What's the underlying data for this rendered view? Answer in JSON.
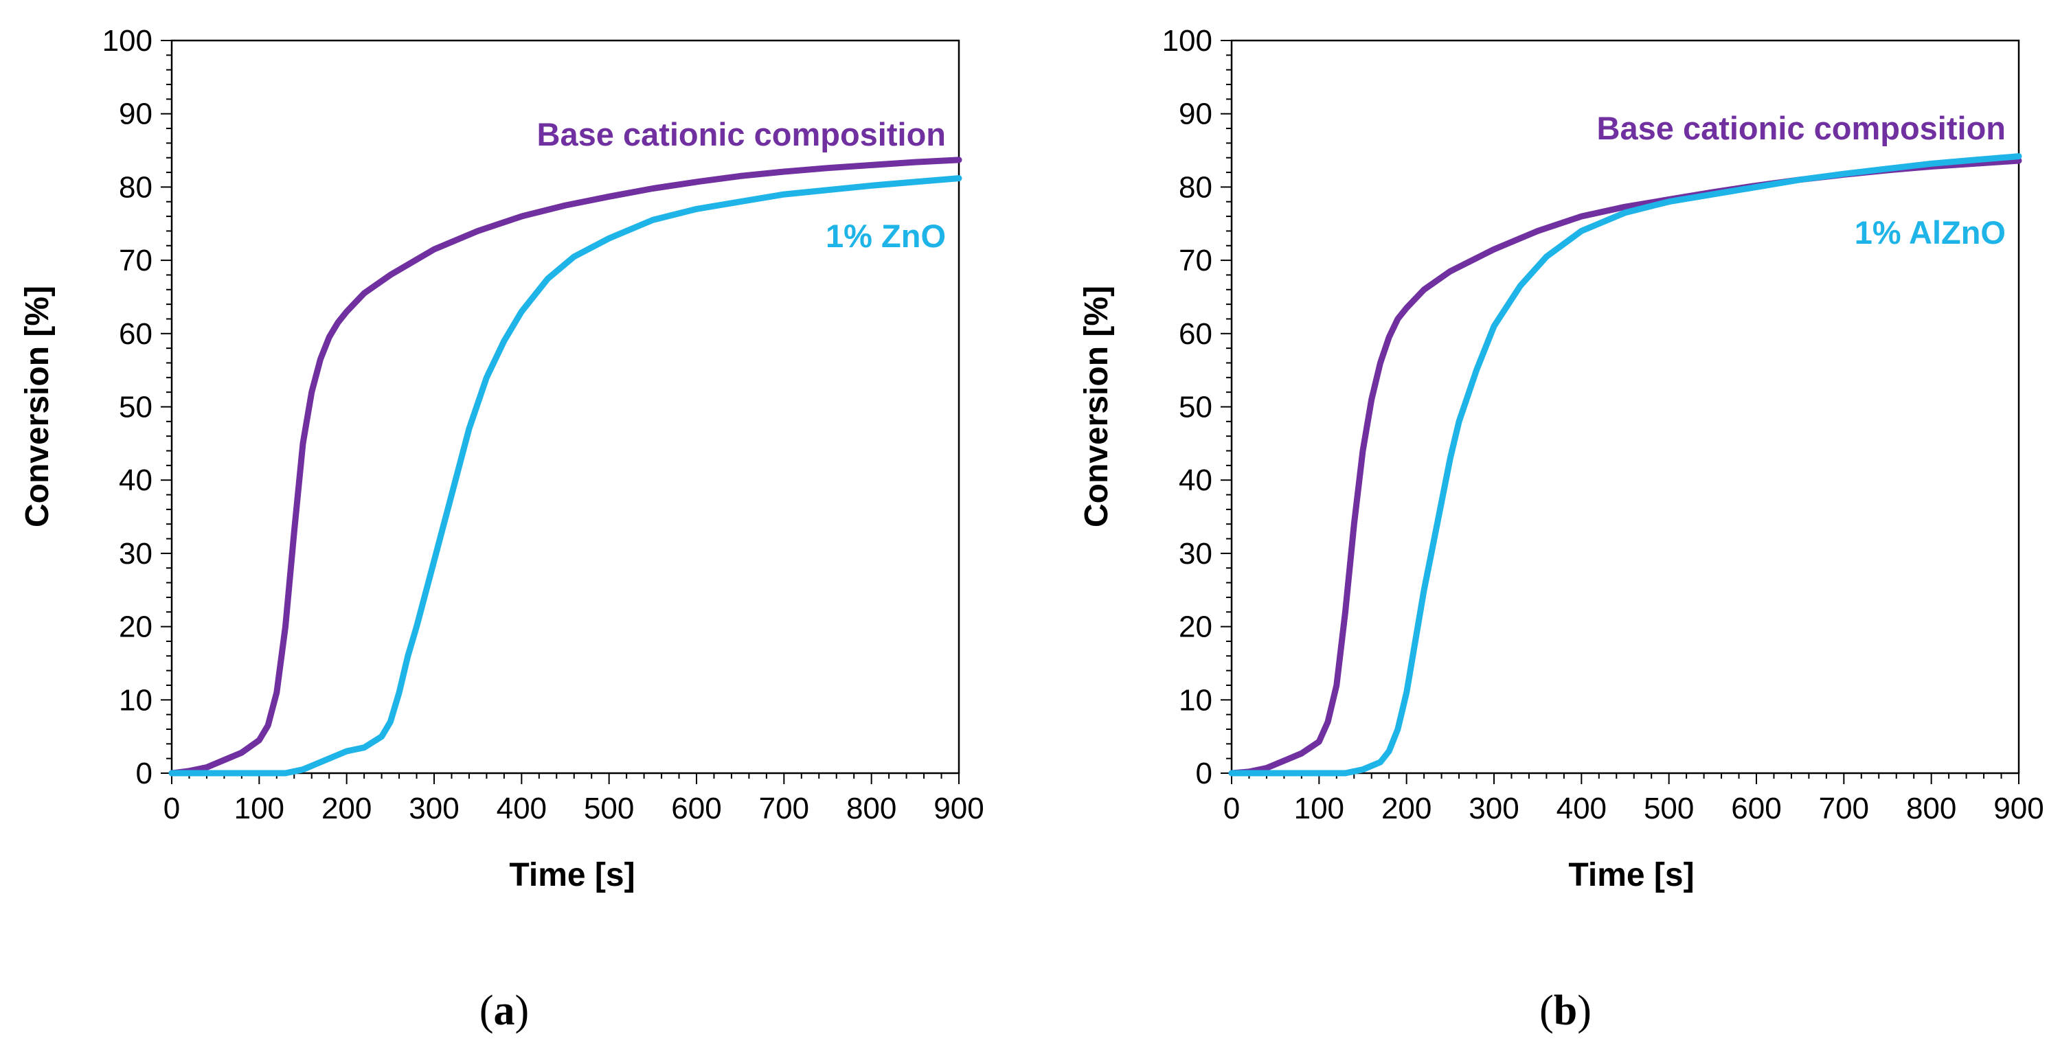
{
  "colors": {
    "base": "#7030A0",
    "additive": "#1FB4E8",
    "axis": "#000000"
  },
  "chart_data": [
    {
      "type": "line",
      "caption": "a",
      "xlabel": "Time [s]",
      "ylabel": "Conversion [%]",
      "xlim": [
        0,
        900
      ],
      "ylim": [
        0,
        100
      ],
      "xticks": [
        0,
        100,
        200,
        300,
        400,
        500,
        600,
        700,
        800,
        900
      ],
      "yticks": [
        0,
        10,
        20,
        30,
        40,
        50,
        60,
        70,
        80,
        90,
        100
      ],
      "grid": false,
      "series": [
        {
          "name": "Base cationic composition",
          "color": "#7030A0",
          "x": [
            0,
            20,
            40,
            60,
            80,
            100,
            110,
            120,
            130,
            140,
            150,
            160,
            170,
            180,
            190,
            200,
            220,
            250,
            300,
            350,
            400,
            450,
            500,
            550,
            600,
            650,
            700,
            750,
            800,
            850,
            900
          ],
          "y": [
            0,
            0.3,
            0.8,
            1.8,
            2.8,
            4.5,
            6.5,
            11,
            20,
            33,
            45,
            52,
            56.5,
            59.5,
            61.5,
            63,
            65.5,
            68,
            71.5,
            74,
            76,
            77.5,
            78.7,
            79.8,
            80.7,
            81.5,
            82.1,
            82.6,
            83.0,
            83.4,
            83.7
          ]
        },
        {
          "name": "1% ZnO",
          "color": "#1FB4E8",
          "x": [
            0,
            50,
            100,
            130,
            150,
            170,
            200,
            220,
            240,
            250,
            260,
            270,
            280,
            300,
            320,
            340,
            360,
            380,
            400,
            430,
            460,
            500,
            550,
            600,
            650,
            700,
            750,
            800,
            850,
            900
          ],
          "y": [
            0,
            0,
            0,
            0,
            0.5,
            1.5,
            3,
            3.5,
            5,
            7,
            11,
            16,
            20,
            29,
            38,
            47,
            54,
            59,
            63,
            67.5,
            70.5,
            73,
            75.5,
            77,
            78,
            79,
            79.6,
            80.2,
            80.7,
            81.2
          ]
        }
      ],
      "labels": [
        "Base cationic composition",
        "1% ZnO"
      ]
    },
    {
      "type": "line",
      "caption": "b",
      "xlabel": "Time [s]",
      "ylabel": "Conversion [%]",
      "xlim": [
        0,
        900
      ],
      "ylim": [
        0,
        100
      ],
      "xticks": [
        0,
        100,
        200,
        300,
        400,
        500,
        600,
        700,
        800,
        900
      ],
      "yticks": [
        0,
        10,
        20,
        30,
        40,
        50,
        60,
        70,
        80,
        90,
        100
      ],
      "grid": false,
      "series": [
        {
          "name": "Base cationic composition",
          "color": "#7030A0",
          "x": [
            0,
            20,
            40,
            60,
            80,
            100,
            110,
            120,
            130,
            140,
            150,
            160,
            170,
            180,
            190,
            200,
            220,
            250,
            300,
            350,
            400,
            450,
            500,
            550,
            600,
            650,
            700,
            750,
            800,
            850,
            900
          ],
          "y": [
            0,
            0.2,
            0.7,
            1.7,
            2.7,
            4.3,
            7,
            12,
            22,
            34,
            44,
            51,
            56,
            59.5,
            62,
            63.5,
            66,
            68.5,
            71.5,
            74,
            76,
            77.3,
            78.3,
            79.3,
            80.2,
            81,
            81.7,
            82.3,
            82.8,
            83.2,
            83.6
          ]
        },
        {
          "name": "1% AlZnO",
          "color": "#1FB4E8",
          "x": [
            0,
            50,
            100,
            130,
            150,
            170,
            180,
            190,
            200,
            210,
            220,
            230,
            240,
            250,
            260,
            280,
            300,
            330,
            360,
            400,
            450,
            500,
            550,
            600,
            650,
            700,
            750,
            800,
            850,
            900
          ],
          "y": [
            0,
            0,
            0,
            0,
            0.5,
            1.5,
            3,
            6,
            11,
            18,
            25,
            31,
            37,
            43,
            48,
            55,
            61,
            66.5,
            70.5,
            74,
            76.5,
            78,
            79,
            80,
            81,
            81.8,
            82.5,
            83.2,
            83.7,
            84.2
          ]
        }
      ],
      "labels": [
        "Base cationic composition",
        "1% AlZnO"
      ]
    }
  ]
}
